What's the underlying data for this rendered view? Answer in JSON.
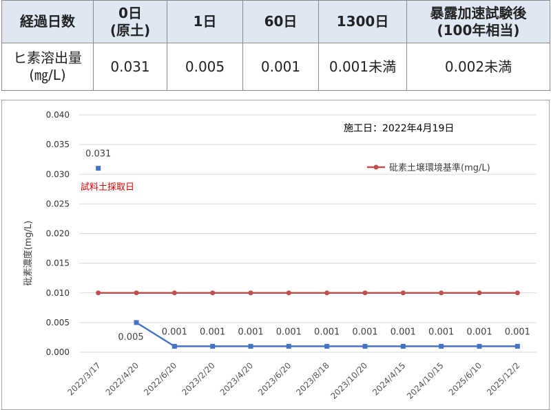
{
  "table": {
    "header": [
      "経過日数",
      "0日\n(原土)",
      "1日",
      "60日",
      "1300日",
      "暴露加速試験後\n(100年相当)"
    ],
    "row": [
      "ヒ素溶出量\n(㎎/L)",
      "0.031",
      "0.005",
      "0.001",
      "0.001未満",
      "0.002未満"
    ]
  },
  "chart_data": {
    "type": "line",
    "ylabel": "砒素濃度(mg/L)",
    "ylim": [
      0,
      0.04
    ],
    "yticks": [
      "0.000",
      "0.005",
      "0.010",
      "0.015",
      "0.020",
      "0.025",
      "0.030",
      "0.035",
      "0.040"
    ],
    "categories": [
      "2022/3/17",
      "2022/4/20",
      "2022/6/20",
      "2023/2/20",
      "2023/4/20",
      "2023/6/20",
      "2023/8/18",
      "2023/10/20",
      "2024/4/15",
      "2024/10/15",
      "2025/6/10",
      "2025/12/2"
    ],
    "grid": true,
    "annotations": {
      "construction_date": "施工日：2022年4月19日",
      "sample_label": "試料土採取日"
    },
    "series": [
      {
        "name": "",
        "color": "#4472c4",
        "line": false,
        "values": [
          0.031,
          null,
          null,
          null,
          null,
          null,
          null,
          null,
          null,
          null,
          null,
          null
        ],
        "labels": [
          "0.031",
          "",
          "",
          "",
          "",
          "",
          "",
          "",
          "",
          "",
          "",
          ""
        ]
      },
      {
        "name": "",
        "color": "#4472c4",
        "line": true,
        "values": [
          null,
          0.005,
          0.001,
          0.001,
          0.001,
          0.001,
          0.001,
          0.001,
          0.001,
          0.001,
          0.001,
          0.001
        ],
        "labels": [
          "",
          "0.005",
          "0.001",
          "0.001",
          "0.001",
          "0.001",
          "0.001",
          "0.001",
          "0.001",
          "0.001",
          "0.001",
          "0.001"
        ]
      },
      {
        "name": "砒素土壌環境基準(mg/L)",
        "color": "#c0504d",
        "line": true,
        "values": [
          0.01,
          0.01,
          0.01,
          0.01,
          0.01,
          0.01,
          0.01,
          0.01,
          0.01,
          0.01,
          0.01,
          0.01
        ],
        "labels": []
      }
    ]
  }
}
